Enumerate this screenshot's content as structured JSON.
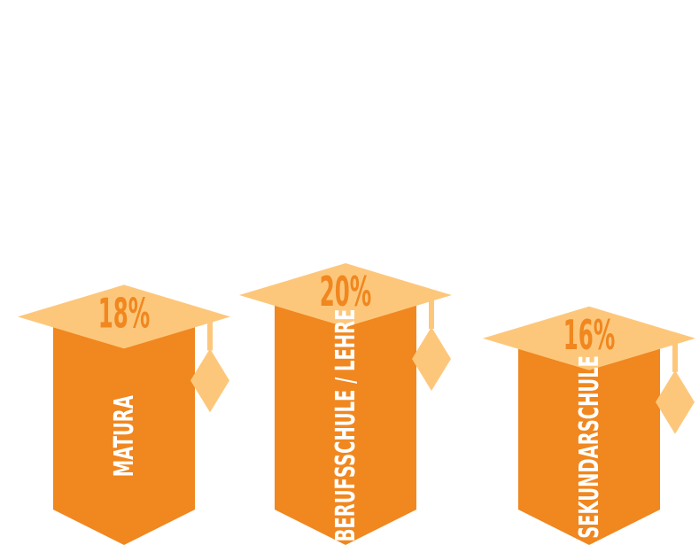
{
  "chart_data": {
    "type": "bar",
    "categories": [
      "MATURA",
      "BERUFSSCHULE / LEHRE",
      "SEKUNDARSCHULE"
    ],
    "values": [
      18,
      20,
      16
    ],
    "value_labels": [
      "18%",
      "20%",
      "16%"
    ],
    "unit": "%",
    "title": "",
    "xlabel": "",
    "ylabel": ""
  },
  "colors": {
    "bar": "#f0871f",
    "cap": "#fdc77b",
    "value_text": "#f0871f",
    "label_text": "#ffffff",
    "background": "#ffffff"
  }
}
